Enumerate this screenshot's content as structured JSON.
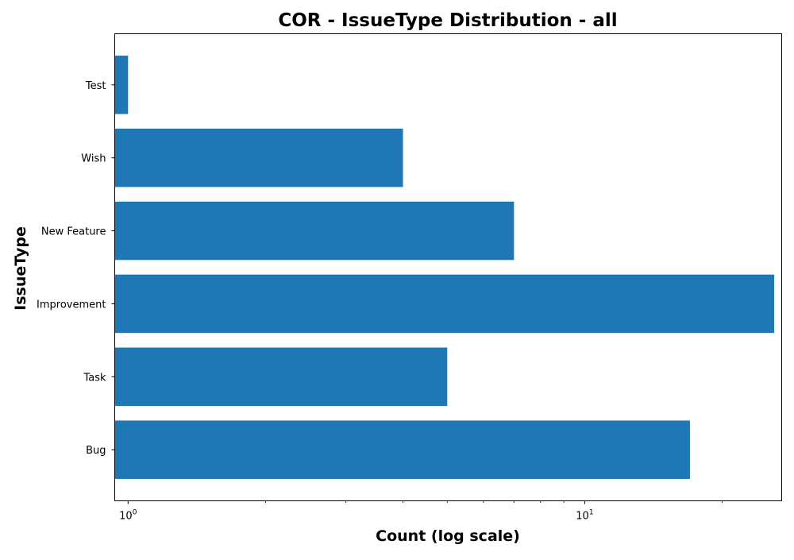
{
  "chart_data": {
    "type": "bar",
    "orientation": "horizontal",
    "title": "COR - IssueType Distribution - all",
    "xlabel": "Count (log scale)",
    "ylabel": "IssueType",
    "xscale": "log",
    "xlim": [
      0.935,
      27
    ],
    "x_ticks": [
      {
        "value": 1,
        "base": "10",
        "exp": "0"
      },
      {
        "value": 10,
        "base": "10",
        "exp": "1"
      }
    ],
    "categories": [
      "Bug",
      "Task",
      "Improvement",
      "New Feature",
      "Wish",
      "Test"
    ],
    "values": [
      17,
      5,
      26,
      7,
      4,
      1
    ],
    "bar_color": "#1f77b4",
    "grid": false,
    "legend": "none"
  }
}
